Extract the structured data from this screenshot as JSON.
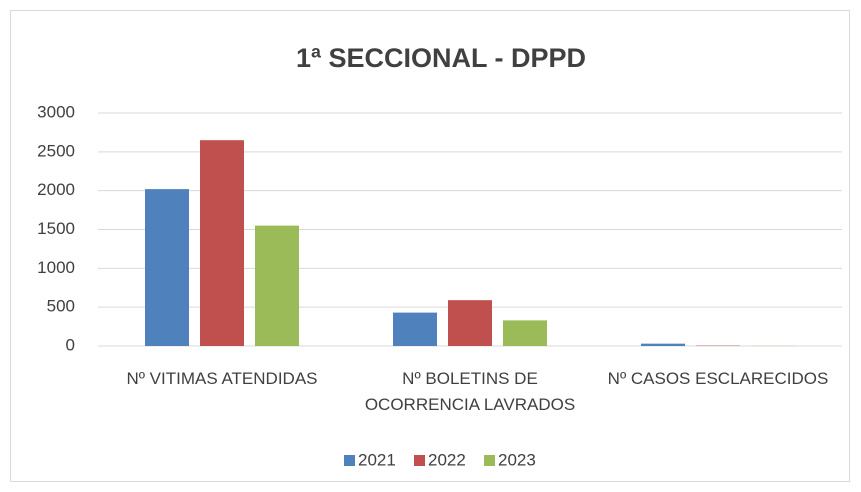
{
  "chart_data": {
    "type": "bar",
    "title": "1ª SECCIONAL - DPPD",
    "categories": [
      "Nº VITIMAS ATENDIDAS",
      "Nº BOLETINS DE OCORRENCIA LAVRADOS",
      "Nº CASOS ESCLARECIDOS"
    ],
    "series": [
      {
        "name": "2021",
        "color": "#4f81bd",
        "values": [
          2020,
          430,
          30
        ]
      },
      {
        "name": "2022",
        "color": "#c0504d",
        "values": [
          2650,
          590,
          5
        ]
      },
      {
        "name": "2023",
        "color": "#9bbb59",
        "values": [
          1550,
          330,
          2
        ]
      }
    ],
    "ylim": [
      0,
      3000
    ],
    "yticks": [
      0,
      500,
      1000,
      1500,
      2000,
      2500,
      3000
    ],
    "grid": true,
    "legend": "bottom"
  }
}
